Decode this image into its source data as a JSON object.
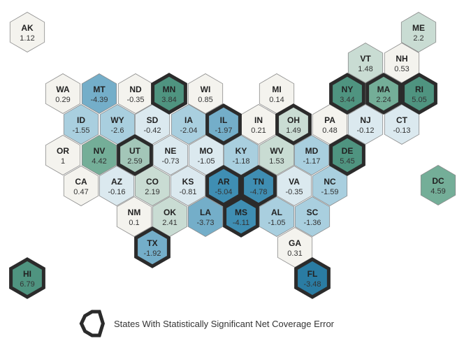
{
  "legend": {
    "label": "States With Statistically Significant Net Coverage Error"
  },
  "colors": {
    "significant_outline": "#2b2b2b",
    "normal_outline": "#8a8a8a",
    "neutral": "#f4f3ee",
    "light_blue": "#dbe9ef",
    "mid_blue": "#a9cfdf",
    "strong_blue": "#74aec9",
    "deep_blue": "#3f8eb3",
    "darkest_blue": "#2a7ca3",
    "light_green": "#c9dcd3",
    "mid_green": "#a3c6b8",
    "strong_green": "#74ae98",
    "deep_green": "#4f9480"
  },
  "states": [
    {
      "abbr": "AK",
      "value": "1.12",
      "color": "#f4f3ee",
      "significant": false
    },
    {
      "abbr": "ME",
      "value": "2.2",
      "color": "#c9dcd3",
      "significant": false
    },
    {
      "abbr": "VT",
      "value": "1.48",
      "color": "#c9dcd3",
      "significant": false
    },
    {
      "abbr": "NH",
      "value": "0.53",
      "color": "#f4f3ee",
      "significant": false
    },
    {
      "abbr": "WA",
      "value": "0.29",
      "color": "#f4f3ee",
      "significant": false
    },
    {
      "abbr": "MT",
      "value": "-4.39",
      "color": "#74aec9",
      "significant": false
    },
    {
      "abbr": "ND",
      "value": "-0.35",
      "color": "#f4f3ee",
      "significant": false
    },
    {
      "abbr": "MN",
      "value": "3.84",
      "color": "#4f9480",
      "significant": true
    },
    {
      "abbr": "WI",
      "value": "0.85",
      "color": "#f4f3ee",
      "significant": false
    },
    {
      "abbr": "MI",
      "value": "0.14",
      "color": "#f4f3ee",
      "significant": false
    },
    {
      "abbr": "NY",
      "value": "3.44",
      "color": "#4f9480",
      "significant": true
    },
    {
      "abbr": "MA",
      "value": "2.24",
      "color": "#74ae98",
      "significant": true
    },
    {
      "abbr": "RI",
      "value": "5.05",
      "color": "#4f9480",
      "significant": true
    },
    {
      "abbr": "ID",
      "value": "-1.55",
      "color": "#a9cfdf",
      "significant": false
    },
    {
      "abbr": "WY",
      "value": "-2.6",
      "color": "#a9cfdf",
      "significant": false
    },
    {
      "abbr": "SD",
      "value": "-0.42",
      "color": "#dbe9ef",
      "significant": false
    },
    {
      "abbr": "IA",
      "value": "-2.04",
      "color": "#a9cfdf",
      "significant": false
    },
    {
      "abbr": "IL",
      "value": "-1.97",
      "color": "#74aec9",
      "significant": true
    },
    {
      "abbr": "IN",
      "value": "0.21",
      "color": "#f4f3ee",
      "significant": false
    },
    {
      "abbr": "OH",
      "value": "1.49",
      "color": "#c9dcd3",
      "significant": true
    },
    {
      "abbr": "PA",
      "value": "0.48",
      "color": "#f4f3ee",
      "significant": false
    },
    {
      "abbr": "NJ",
      "value": "-0.12",
      "color": "#dbe9ef",
      "significant": false
    },
    {
      "abbr": "CT",
      "value": "-0.13",
      "color": "#dbe9ef",
      "significant": false
    },
    {
      "abbr": "OR",
      "value": "1",
      "color": "#f4f3ee",
      "significant": false
    },
    {
      "abbr": "NV",
      "value": "4.42",
      "color": "#74ae98",
      "significant": false
    },
    {
      "abbr": "UT",
      "value": "2.59",
      "color": "#a3c6b8",
      "significant": true
    },
    {
      "abbr": "NE",
      "value": "-0.73",
      "color": "#dbe9ef",
      "significant": false
    },
    {
      "abbr": "MO",
      "value": "-1.05",
      "color": "#dbe9ef",
      "significant": false
    },
    {
      "abbr": "KY",
      "value": "-1.18",
      "color": "#a9cfdf",
      "significant": false
    },
    {
      "abbr": "WV",
      "value": "1.53",
      "color": "#c9dcd3",
      "significant": false
    },
    {
      "abbr": "MD",
      "value": "-1.17",
      "color": "#a9cfdf",
      "significant": false
    },
    {
      "abbr": "DE",
      "value": "5.45",
      "color": "#4f9480",
      "significant": true
    },
    {
      "abbr": "DC",
      "value": "4.59",
      "color": "#74ae98",
      "significant": false
    },
    {
      "abbr": "CA",
      "value": "0.47",
      "color": "#f4f3ee",
      "significant": false
    },
    {
      "abbr": "AZ",
      "value": "-0.16",
      "color": "#dbe9ef",
      "significant": false
    },
    {
      "abbr": "CO",
      "value": "2.19",
      "color": "#c9dcd3",
      "significant": false
    },
    {
      "abbr": "KS",
      "value": "-0.81",
      "color": "#dbe9ef",
      "significant": false
    },
    {
      "abbr": "AR",
      "value": "-5.04",
      "color": "#3f8eb3",
      "significant": true
    },
    {
      "abbr": "TN",
      "value": "-4.78",
      "color": "#3f8eb3",
      "significant": true
    },
    {
      "abbr": "VA",
      "value": "-0.35",
      "color": "#dbe9ef",
      "significant": false
    },
    {
      "abbr": "NC",
      "value": "-1.59",
      "color": "#a9cfdf",
      "significant": false
    },
    {
      "abbr": "NM",
      "value": "0.1",
      "color": "#f4f3ee",
      "significant": false
    },
    {
      "abbr": "OK",
      "value": "2.41",
      "color": "#c9dcd3",
      "significant": false
    },
    {
      "abbr": "LA",
      "value": "-3.73",
      "color": "#74aec9",
      "significant": false
    },
    {
      "abbr": "MS",
      "value": "-4.11",
      "color": "#3f8eb3",
      "significant": true
    },
    {
      "abbr": "AL",
      "value": "-1.05",
      "color": "#a9cfdf",
      "significant": false
    },
    {
      "abbr": "SC",
      "value": "-1.36",
      "color": "#a9cfdf",
      "significant": false
    },
    {
      "abbr": "GA",
      "value": "0.31",
      "color": "#f4f3ee",
      "significant": false
    },
    {
      "abbr": "TX",
      "value": "-1.92",
      "color": "#74aec9",
      "significant": true
    },
    {
      "abbr": "FL",
      "value": "-3.48",
      "color": "#2a7ca3",
      "significant": true
    },
    {
      "abbr": "HI",
      "value": "6.79",
      "color": "#4f9480",
      "significant": true
    }
  ]
}
